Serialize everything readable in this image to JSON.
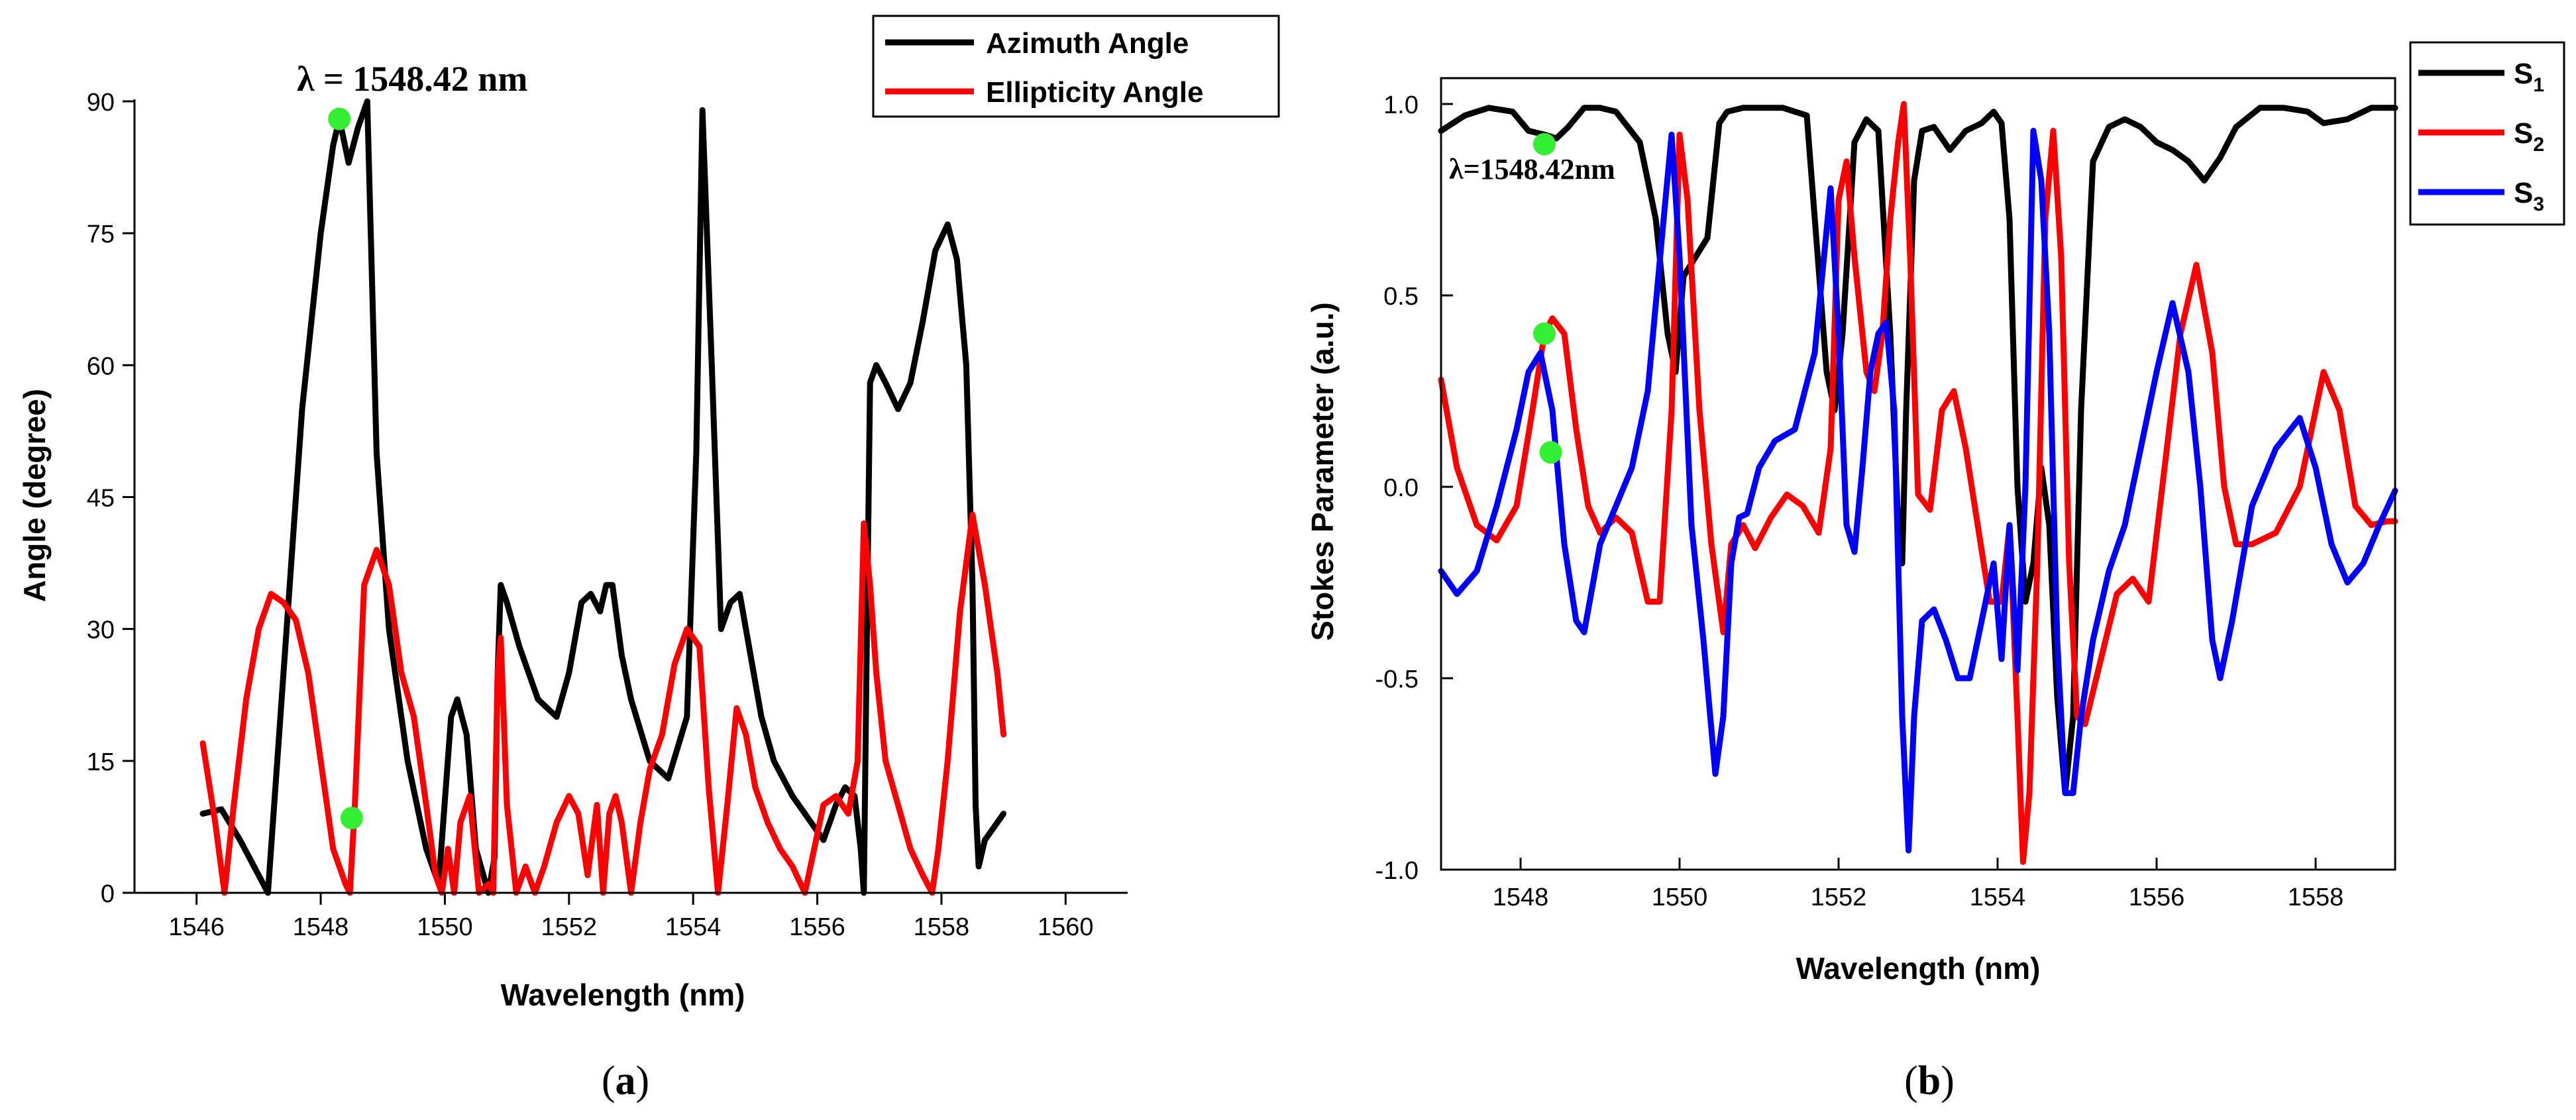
{
  "chart_data": [
    {
      "type": "line",
      "panel": "a",
      "xlabel": "Wavelength (nm)",
      "ylabel": "Angle (degree)",
      "xlim": [
        1545,
        1561
      ],
      "ylim": [
        0,
        90
      ],
      "xticks": [
        1546,
        1548,
        1550,
        1552,
        1554,
        1556,
        1558,
        1560
      ],
      "yticks": [
        0,
        15,
        30,
        45,
        60,
        75,
        90
      ],
      "legend_position": "top-right",
      "annotation": "λ = 1548.42 nm",
      "caption": "(a)",
      "caption_letter": "a",
      "series": [
        {
          "name": "Azimuth Angle",
          "color": "#000000",
          "x": [
            1546.1,
            1546.4,
            1546.7,
            1547.0,
            1547.15,
            1547.4,
            1547.7,
            1548.0,
            1548.2,
            1548.3,
            1548.45,
            1548.6,
            1548.75,
            1548.9,
            1549.1,
            1549.4,
            1549.7,
            1549.9,
            1550.1,
            1550.2,
            1550.35,
            1550.5,
            1550.7,
            1550.8,
            1550.85,
            1550.9,
            1551.0,
            1551.2,
            1551.5,
            1551.8,
            1552.0,
            1552.2,
            1552.35,
            1552.5,
            1552.6,
            1552.7,
            1552.85,
            1553.0,
            1553.3,
            1553.6,
            1553.9,
            1554.05,
            1554.15,
            1554.3,
            1554.45,
            1554.6,
            1554.75,
            1554.9,
            1555.1,
            1555.3,
            1555.6,
            1555.9,
            1556.1,
            1556.3,
            1556.45,
            1556.6,
            1556.7,
            1556.75,
            1556.8,
            1556.85,
            1556.95,
            1557.1,
            1557.3,
            1557.5,
            1557.7,
            1557.9,
            1558.1,
            1558.25,
            1558.4,
            1558.5,
            1558.55,
            1558.6,
            1558.7,
            1558.9,
            1559.0
          ],
          "y": [
            9,
            9.5,
            6,
            2,
            0,
            25,
            55,
            75,
            85,
            88,
            83,
            87,
            90,
            50,
            30,
            15,
            5,
            1,
            20,
            22,
            18,
            5,
            0,
            4,
            25,
            35,
            33,
            28,
            22,
            20,
            25,
            33,
            34,
            32,
            35,
            35,
            27,
            22,
            15,
            13,
            20,
            50,
            89,
            60,
            30,
            33,
            34,
            28,
            20,
            15,
            11,
            8,
            6,
            10,
            12,
            11,
            5,
            0,
            30,
            58,
            60,
            58,
            55,
            58,
            65,
            73,
            76,
            72,
            60,
            35,
            10,
            3,
            6,
            8,
            9
          ]
        },
        {
          "name": "Ellipticity Angle",
          "color": "#ff0000",
          "x": [
            1546.1,
            1546.3,
            1546.45,
            1546.6,
            1546.8,
            1547.0,
            1547.2,
            1547.4,
            1547.6,
            1547.8,
            1548.0,
            1548.2,
            1548.4,
            1548.47,
            1548.55,
            1548.7,
            1548.9,
            1549.1,
            1549.3,
            1549.5,
            1549.7,
            1549.85,
            1549.95,
            1550.05,
            1550.15,
            1550.25,
            1550.4,
            1550.55,
            1550.7,
            1550.78,
            1550.85,
            1550.9,
            1551.0,
            1551.15,
            1551.3,
            1551.45,
            1551.6,
            1551.8,
            1552.0,
            1552.15,
            1552.3,
            1552.45,
            1552.55,
            1552.65,
            1552.75,
            1552.85,
            1553.0,
            1553.15,
            1553.3,
            1553.5,
            1553.7,
            1553.9,
            1554.1,
            1554.25,
            1554.4,
            1554.55,
            1554.7,
            1554.85,
            1555.0,
            1555.2,
            1555.4,
            1555.6,
            1555.8,
            1555.95,
            1556.1,
            1556.3,
            1556.5,
            1556.65,
            1556.75,
            1556.85,
            1556.95,
            1557.1,
            1557.3,
            1557.5,
            1557.7,
            1557.85,
            1557.95,
            1558.1,
            1558.3,
            1558.5,
            1558.7,
            1558.9,
            1559.0
          ],
          "y": [
            17,
            8,
            0,
            10,
            22,
            30,
            34,
            33,
            31,
            25,
            15,
            5,
            1,
            0,
            10,
            35,
            39,
            35,
            25,
            20,
            10,
            2,
            0,
            5,
            0,
            8,
            11,
            0,
            1,
            0,
            25,
            29,
            10,
            0,
            3,
            0,
            3,
            8,
            11,
            9,
            2,
            10,
            0,
            9,
            11,
            8,
            0,
            8,
            14,
            18,
            26,
            30,
            28,
            12,
            0,
            10,
            21,
            18,
            12,
            8,
            5,
            3,
            0,
            5,
            10,
            11,
            9,
            15,
            42,
            35,
            25,
            15,
            10,
            5,
            2,
            0,
            5,
            15,
            32,
            43,
            35,
            25,
            18
          ]
        }
      ],
      "markers": [
        {
          "series": "Azimuth Angle",
          "x": 1548.3,
          "y": 88,
          "color": "#33ee33"
        },
        {
          "series": "Ellipticity Angle",
          "x": 1548.5,
          "y": 8.5,
          "color": "#33ee33"
        }
      ]
    },
    {
      "type": "line",
      "panel": "b",
      "xlabel": "Wavelength (nm)",
      "ylabel": "Stokes Parameter (a.u.)",
      "xlim": [
        1547,
        1559
      ],
      "ylim": [
        -1.0,
        1.05
      ],
      "xticks": [
        1548,
        1550,
        1552,
        1554,
        1556,
        1558
      ],
      "yticks": [
        -1.0,
        -0.5,
        0.0,
        0.5,
        1.0
      ],
      "ytick_labels": [
        "-1.0",
        "-0.5",
        "0.0",
        "0.5",
        "1.0"
      ],
      "legend_position": "top-right",
      "annotation": "λ=1548.42nm",
      "caption": "(b)",
      "caption_letter": "b",
      "series": [
        {
          "name": "S",
          "subscript": "1",
          "color": "#000000",
          "x": [
            1547.0,
            1547.3,
            1547.6,
            1547.9,
            1548.1,
            1548.3,
            1548.45,
            1548.6,
            1548.8,
            1549.0,
            1549.2,
            1549.5,
            1549.7,
            1549.85,
            1549.95,
            1550.05,
            1550.2,
            1550.35,
            1550.5,
            1550.6,
            1550.8,
            1551.0,
            1551.3,
            1551.6,
            1551.85,
            1551.95,
            1552.05,
            1552.2,
            1552.35,
            1552.5,
            1552.65,
            1552.75,
            1552.8,
            1552.85,
            1552.95,
            1553.05,
            1553.2,
            1553.4,
            1553.6,
            1553.8,
            1553.95,
            1554.05,
            1554.15,
            1554.25,
            1554.35,
            1554.45,
            1554.55,
            1554.65,
            1554.75,
            1554.85,
            1554.95,
            1555.05,
            1555.2,
            1555.4,
            1555.6,
            1555.8,
            1556.0,
            1556.2,
            1556.4,
            1556.6,
            1556.8,
            1557.0,
            1557.3,
            1557.6,
            1557.9,
            1558.1,
            1558.4,
            1558.7,
            1559.0
          ],
          "y": [
            0.93,
            0.97,
            0.99,
            0.98,
            0.93,
            0.92,
            0.91,
            0.94,
            0.99,
            0.99,
            0.98,
            0.9,
            0.7,
            0.4,
            0.3,
            0.55,
            0.6,
            0.65,
            0.95,
            0.98,
            0.99,
            0.99,
            0.99,
            0.97,
            0.3,
            0.2,
            0.4,
            0.9,
            0.96,
            0.93,
            0.4,
            -0.1,
            -0.2,
            0.2,
            0.8,
            0.93,
            0.94,
            0.88,
            0.93,
            0.95,
            0.98,
            0.95,
            0.7,
            0.0,
            -0.3,
            -0.2,
            0.05,
            -0.1,
            -0.55,
            -0.8,
            -0.6,
            0.2,
            0.85,
            0.94,
            0.96,
            0.94,
            0.9,
            0.88,
            0.85,
            0.8,
            0.86,
            0.94,
            0.99,
            0.99,
            0.98,
            0.95,
            0.96,
            0.99,
            0.99
          ]
        },
        {
          "name": "S",
          "subscript": "2",
          "color": "#ff0000",
          "x": [
            1547.0,
            1547.2,
            1547.45,
            1547.7,
            1547.95,
            1548.15,
            1548.3,
            1548.4,
            1548.55,
            1548.7,
            1548.85,
            1549.0,
            1549.2,
            1549.4,
            1549.6,
            1549.75,
            1549.9,
            1550.0,
            1550.1,
            1550.25,
            1550.4,
            1550.55,
            1550.65,
            1550.8,
            1550.95,
            1551.15,
            1551.35,
            1551.55,
            1551.75,
            1551.9,
            1552.0,
            1552.1,
            1552.2,
            1552.35,
            1552.45,
            1552.55,
            1552.65,
            1552.75,
            1552.82,
            1552.9,
            1553.0,
            1553.15,
            1553.3,
            1553.45,
            1553.6,
            1553.75,
            1553.9,
            1554.05,
            1554.15,
            1554.25,
            1554.32,
            1554.4,
            1554.5,
            1554.6,
            1554.7,
            1554.8,
            1554.9,
            1555.0,
            1555.1,
            1555.3,
            1555.5,
            1555.7,
            1555.9,
            1556.1,
            1556.3,
            1556.5,
            1556.7,
            1556.85,
            1557.0,
            1557.2,
            1557.5,
            1557.8,
            1558.1,
            1558.3,
            1558.5,
            1558.7,
            1558.9,
            1559.0
          ],
          "y": [
            0.28,
            0.05,
            -0.1,
            -0.14,
            -0.05,
            0.2,
            0.4,
            0.44,
            0.4,
            0.15,
            -0.05,
            -0.12,
            -0.08,
            -0.12,
            -0.3,
            -0.3,
            0.2,
            0.92,
            0.75,
            0.2,
            -0.15,
            -0.38,
            -0.15,
            -0.1,
            -0.16,
            -0.08,
            -0.02,
            -0.05,
            -0.12,
            0.1,
            0.75,
            0.85,
            0.6,
            0.3,
            0.25,
            0.4,
            0.7,
            0.9,
            1.0,
            0.6,
            -0.02,
            -0.06,
            0.2,
            0.25,
            0.1,
            -0.1,
            -0.3,
            -0.3,
            -0.1,
            -0.6,
            -0.98,
            -0.8,
            -0.2,
            0.7,
            0.93,
            0.6,
            -0.2,
            -0.6,
            -0.62,
            -0.45,
            -0.28,
            -0.24,
            -0.3,
            0.05,
            0.4,
            0.58,
            0.35,
            0.0,
            -0.15,
            -0.15,
            -0.12,
            0.0,
            0.3,
            0.2,
            -0.05,
            -0.1,
            -0.09,
            -0.09
          ]
        },
        {
          "name": "S",
          "subscript": "3",
          "color": "#0000ff",
          "x": [
            1547.0,
            1547.2,
            1547.45,
            1547.7,
            1547.95,
            1548.1,
            1548.25,
            1548.4,
            1548.55,
            1548.7,
            1548.8,
            1549.0,
            1549.2,
            1549.4,
            1549.6,
            1549.8,
            1549.9,
            1550.0,
            1550.15,
            1550.3,
            1550.45,
            1550.55,
            1550.65,
            1550.75,
            1550.85,
            1551.0,
            1551.2,
            1551.45,
            1551.7,
            1551.9,
            1552.0,
            1552.1,
            1552.2,
            1552.3,
            1552.4,
            1552.5,
            1552.6,
            1552.7,
            1552.8,
            1552.88,
            1552.95,
            1553.05,
            1553.2,
            1553.35,
            1553.5,
            1553.65,
            1553.8,
            1553.95,
            1554.05,
            1554.15,
            1554.25,
            1554.35,
            1554.45,
            1554.55,
            1554.65,
            1554.75,
            1554.85,
            1554.95,
            1555.05,
            1555.2,
            1555.4,
            1555.6,
            1555.8,
            1556.0,
            1556.2,
            1556.4,
            1556.55,
            1556.7,
            1556.8,
            1556.95,
            1557.2,
            1557.5,
            1557.8,
            1558.0,
            1558.2,
            1558.4,
            1558.6,
            1558.8,
            1559.0
          ],
          "y": [
            -0.22,
            -0.28,
            -0.22,
            -0.05,
            0.15,
            0.3,
            0.35,
            0.2,
            -0.15,
            -0.35,
            -0.38,
            -0.15,
            -0.05,
            0.05,
            0.25,
            0.7,
            0.92,
            0.6,
            -0.1,
            -0.4,
            -0.75,
            -0.6,
            -0.2,
            -0.08,
            -0.07,
            0.05,
            0.12,
            0.15,
            0.35,
            0.78,
            0.4,
            -0.1,
            -0.17,
            0.05,
            0.3,
            0.4,
            0.43,
            0.2,
            -0.6,
            -0.95,
            -0.6,
            -0.35,
            -0.32,
            -0.4,
            -0.5,
            -0.5,
            -0.35,
            -0.2,
            -0.45,
            -0.1,
            -0.48,
            0.0,
            0.93,
            0.8,
            0.4,
            -0.4,
            -0.8,
            -0.8,
            -0.6,
            -0.4,
            -0.22,
            -0.1,
            0.1,
            0.3,
            0.48,
            0.3,
            0.0,
            -0.4,
            -0.5,
            -0.35,
            -0.05,
            0.1,
            0.18,
            0.05,
            -0.15,
            -0.25,
            -0.2,
            -0.1,
            -0.01
          ]
        }
      ],
      "markers": [
        {
          "series": "S1",
          "x": 1548.3,
          "y": 0.895,
          "color": "#33ee33"
        },
        {
          "series": "S2",
          "x": 1548.3,
          "y": 0.4,
          "color": "#33ee33"
        },
        {
          "series": "S3",
          "x": 1548.38,
          "y": 0.09,
          "color": "#33ee33"
        }
      ]
    }
  ]
}
